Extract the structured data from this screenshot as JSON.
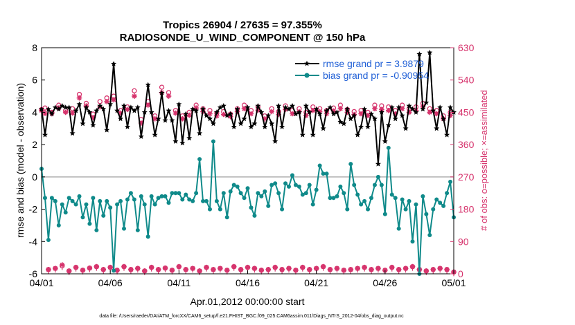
{
  "chart_data": {
    "type": "line",
    "title": "Tropics 26904 / 27635 = 97.355%",
    "subtitle": "RADIOSONDE_U_WIND_COMPONENT @ 150 hPa",
    "xlabel": "Apr.01,2012 00:00:00 start",
    "ylabel": "rmse and bias (model - observation)",
    "ylabel_right": "# of obs: o=possible; ×=assimilated",
    "xlim": [
      0,
      30
    ],
    "ylim": [
      -6,
      8
    ],
    "ylim_right": [
      0,
      630
    ],
    "x_tick_labels": [
      "04/01",
      "04/06",
      "04/11",
      "04/16",
      "04/21",
      "04/26",
      "05/01"
    ],
    "x_tick_values": [
      0,
      5,
      10,
      15,
      20,
      25,
      30
    ],
    "y_ticks": [
      -6,
      -4,
      -2,
      0,
      2,
      4,
      6,
      8
    ],
    "y_ticks_right": [
      0,
      90,
      180,
      270,
      360,
      450,
      540,
      630
    ],
    "footer": "data file: /Users/raeder/DAI/ATM_forcXX/CAM6_setup/f.e21.FHIST_BGC.f09_025.CAM6assim.011/Diags_NTrS_2012-04/obs_diag_output.nc",
    "x": [
      0.0,
      0.25,
      0.5,
      0.75,
      1.0,
      1.25,
      1.5,
      1.75,
      2.0,
      2.25,
      2.5,
      2.75,
      3.0,
      3.25,
      3.5,
      3.75,
      4.0,
      4.25,
      4.5,
      4.75,
      5.0,
      5.25,
      5.5,
      5.75,
      6.0,
      6.25,
      6.5,
      6.75,
      7.0,
      7.25,
      7.5,
      7.75,
      8.0,
      8.25,
      8.5,
      8.75,
      9.0,
      9.25,
      9.5,
      9.75,
      10.0,
      10.25,
      10.5,
      10.75,
      11.0,
      11.25,
      11.5,
      11.75,
      12.0,
      12.25,
      12.5,
      12.75,
      13.0,
      13.25,
      13.5,
      13.75,
      14.0,
      14.25,
      14.5,
      14.75,
      15.0,
      15.25,
      15.5,
      15.75,
      16.0,
      16.25,
      16.5,
      16.75,
      17.0,
      17.25,
      17.5,
      17.75,
      18.0,
      18.25,
      18.5,
      18.75,
      19.0,
      19.25,
      19.5,
      19.75,
      20.0,
      20.25,
      20.5,
      20.75,
      21.0,
      21.25,
      21.5,
      21.75,
      22.0,
      22.25,
      22.5,
      22.75,
      23.0,
      23.25,
      23.5,
      23.75,
      24.0,
      24.25,
      24.5,
      24.75,
      25.0,
      25.25,
      25.5,
      25.75,
      26.0,
      26.25,
      26.5,
      26.75,
      27.0,
      27.25,
      27.5,
      27.75,
      28.0,
      28.25,
      28.5,
      28.75,
      29.0,
      29.25,
      29.5,
      29.75,
      30.0
    ],
    "series": [
      {
        "name": "rmse grand pr = 3.9879",
        "color": "#000000",
        "marker": "star",
        "axis": "left",
        "values": [
          4.2,
          2.6,
          4.2,
          3.9,
          4.3,
          4.2,
          4.4,
          4.3,
          4.3,
          2.7,
          4.1,
          4.5,
          3.3,
          4.3,
          4.0,
          3.2,
          4.1,
          4.4,
          4.2,
          2.9,
          4.5,
          7.0,
          4.1,
          3.6,
          4.4,
          3.1,
          4.3,
          4.1,
          4.3,
          2.5,
          4.0,
          5.7,
          4.0,
          2.6,
          3.6,
          5.2,
          3.5,
          4.1,
          3.5,
          2.2,
          4.5,
          2.1,
          3.9,
          2.4,
          4.2,
          4.1,
          2.7,
          4.2,
          3.8,
          3.6,
          3.3,
          4.0,
          4.3,
          4.4,
          3.8,
          3.9,
          3.1,
          4.2,
          3.3,
          3.6,
          4.3,
          3.1,
          3.3,
          4.4,
          4.0,
          3.1,
          3.8,
          3.3,
          2.2,
          4.4,
          3.1,
          4.3,
          4.2,
          4.4,
          3.9,
          4.0,
          2.6,
          4.4,
          4.0,
          2.6,
          4.2,
          3.9,
          3.0,
          4.1,
          4.3,
          3.9,
          4.0,
          3.4,
          3.3,
          4.2,
          3.6,
          3.8,
          2.6,
          3.1,
          4.2,
          3.1,
          3.9,
          3.6,
          0.8,
          4.0,
          2.2,
          3.2,
          4.3,
          3.6,
          4.3,
          3.8,
          3.0,
          4.4,
          4.2,
          4.0,
          7.6,
          4.2,
          4.6,
          7.7,
          4.1,
          3.0,
          4.3,
          3.6,
          2.6,
          4.3,
          4.0
        ]
      },
      {
        "name": "bias grand pr = -0.90954",
        "color": "#0f8a8a",
        "marker": "dot",
        "axis": "left",
        "values": [
          0.5,
          -1.3,
          -3.9,
          -1.3,
          -1.5,
          -3.0,
          -1.7,
          -2.2,
          -1.3,
          -1.5,
          -1.7,
          -1.2,
          -2.5,
          -1.7,
          -2.9,
          -1.3,
          -3.3,
          -1.5,
          -2.4,
          -1.5,
          -1.9,
          -5.8,
          -1.7,
          -1.5,
          -3.2,
          -1.4,
          -1.0,
          -1.4,
          -3.3,
          -1.2,
          -1.7,
          -3.7,
          -1.2,
          -1.7,
          -1.3,
          -1.2,
          -1.2,
          -1.6,
          -1.0,
          -1.0,
          -1.0,
          -1.4,
          -1.1,
          -1.4,
          -1.5,
          -1.0,
          1.1,
          -1.5,
          -1.5,
          -2.0,
          2.2,
          -1.5,
          -2.0,
          -1.0,
          -2.5,
          -0.9,
          -0.5,
          -0.6,
          -1.0,
          -1.3,
          -0.7,
          -1.9,
          -2.4,
          -1.0,
          -1.2,
          -0.9,
          -1.8,
          -0.5,
          -0.4,
          -1.0,
          -2.0,
          -0.4,
          -0.6,
          0.1,
          -0.5,
          -0.6,
          -1.1,
          -1.0,
          -0.5,
          -1.7,
          -0.8,
          0.7,
          0.2,
          0.2,
          -1.3,
          -1.3,
          -1.2,
          -0.6,
          -1.0,
          -2.0,
          0.8,
          -0.5,
          -1.1,
          -1.7,
          -1.5,
          -2.0,
          -1.3,
          -0.5,
          0.0,
          -0.5,
          -2.3,
          1.8,
          -1.1,
          -1.3,
          -3.2,
          -1.4,
          -2.0,
          -1.5,
          -4.0,
          -1.7,
          -6.0,
          -1.2,
          -2.3,
          -3.6,
          -2.0,
          -1.4,
          -1.6,
          -1.8,
          -1.0,
          -0.3,
          -2.5
        ]
      }
    ],
    "obs_counts": [
      {
        "name": "possible",
        "marker": "o",
        "color": "#d6336c",
        "axis": "right",
        "values": [
          458,
          462,
          12,
          450,
          15,
          470,
          22,
          455,
          8,
          460,
          18,
          500,
          10,
          475,
          16,
          445,
          20,
          480,
          12,
          490,
          18,
          495,
          10,
          455,
          20,
          465,
          12,
          510,
          15,
          430,
          8,
          480,
          18,
          440,
          12,
          520,
          16,
          505,
          10,
          455,
          20,
          440,
          12,
          450,
          15,
          470,
          8,
          460,
          18,
          455,
          12,
          448,
          15,
          452,
          10,
          445,
          20,
          460,
          12,
          470,
          18,
          455,
          15,
          465,
          10,
          440,
          12,
          460,
          18,
          452,
          12,
          468,
          15,
          455,
          10,
          460,
          18,
          450,
          12,
          465,
          15,
          460,
          20,
          455,
          12,
          462,
          15,
          470,
          10,
          458,
          12,
          452,
          15,
          455,
          18,
          450,
          12,
          470,
          15,
          468,
          10,
          465,
          18,
          455,
          12,
          470,
          15,
          460,
          20,
          465,
          12,
          475,
          8,
          460,
          12,
          455,
          15,
          440,
          12,
          450,
          5
        ]
      },
      {
        "name": "assimilated",
        "marker": "x",
        "color": "#d6336c",
        "axis": "right",
        "values": [
          455,
          447,
          12,
          448,
          15,
          462,
          25,
          450,
          8,
          448,
          18,
          490,
          10,
          468,
          16,
          435,
          20,
          465,
          12,
          480,
          18,
          485,
          10,
          448,
          20,
          458,
          12,
          495,
          15,
          420,
          8,
          470,
          18,
          432,
          12,
          505,
          16,
          495,
          10,
          448,
          20,
          432,
          12,
          442,
          15,
          462,
          8,
          452,
          18,
          446,
          12,
          440,
          15,
          444,
          10,
          438,
          20,
          452,
          12,
          460,
          18,
          446,
          15,
          456,
          10,
          432,
          12,
          452,
          18,
          444,
          12,
          458,
          15,
          446,
          10,
          452,
          18,
          441,
          12,
          455,
          15,
          452,
          20,
          446,
          12,
          454,
          15,
          460,
          10,
          450,
          12,
          444,
          15,
          446,
          18,
          441,
          12,
          460,
          15,
          458,
          10,
          455,
          18,
          446,
          12,
          460,
          15,
          450,
          20,
          455,
          12,
          465,
          8,
          450,
          12,
          446,
          15,
          432,
          12,
          441,
          5
        ]
      }
    ]
  }
}
